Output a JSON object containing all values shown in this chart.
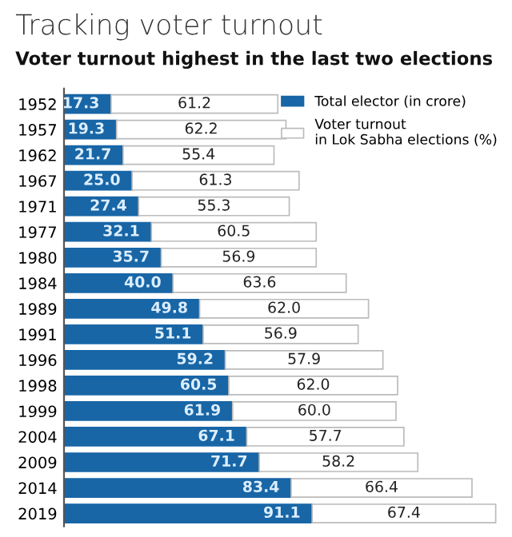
{
  "chart_data": {
    "type": "bar",
    "orientation": "horizontal",
    "stacked": true,
    "grid": false,
    "legend": "top right",
    "tick_labels": "y",
    "title": "Tracking voter turnout",
    "subtitle": "Voter turnout highest in the last two elections",
    "categories": [
      "1952",
      "1957",
      "1962",
      "1967",
      "1971",
      "1977",
      "1980",
      "1984",
      "1989",
      "1991",
      "1996",
      "1998",
      "1999",
      "2004",
      "2009",
      "2014",
      "2019"
    ],
    "series": [
      {
        "name": "Total elector (in crore)",
        "color": "#1866a6",
        "values": [
          17.3,
          19.3,
          21.7,
          25.0,
          27.4,
          32.1,
          35.7,
          40.0,
          49.8,
          51.1,
          59.2,
          60.5,
          61.9,
          67.1,
          71.7,
          83.4,
          91.1
        ],
        "value_labels": [
          "17.3",
          "19.3",
          "21.7",
          "25.0",
          "27.4",
          "32.1",
          "35.7",
          "40.0",
          "49.8",
          "51.1",
          "59.2",
          "60.5",
          "61.9",
          "67.1",
          "71.7",
          "83.4",
          "91.1"
        ]
      },
      {
        "name": "Voter turnout\nin Lok Sabha elections (%)",
        "color": "#ffffff",
        "values": [
          61.2,
          62.2,
          55.4,
          61.3,
          55.3,
          60.5,
          56.9,
          63.6,
          62.0,
          56.9,
          57.9,
          62.0,
          60.0,
          57.7,
          58.2,
          66.4,
          67.4
        ],
        "value_labels": [
          "61.2",
          "62.2",
          "55.4",
          "61.3",
          "55.3",
          "60.5",
          "56.9",
          "63.6",
          "62.0",
          "56.9",
          "57.9",
          "62.0",
          "60.0",
          "57.7",
          "58.2",
          "66.4",
          "67.4"
        ]
      }
    ]
  }
}
